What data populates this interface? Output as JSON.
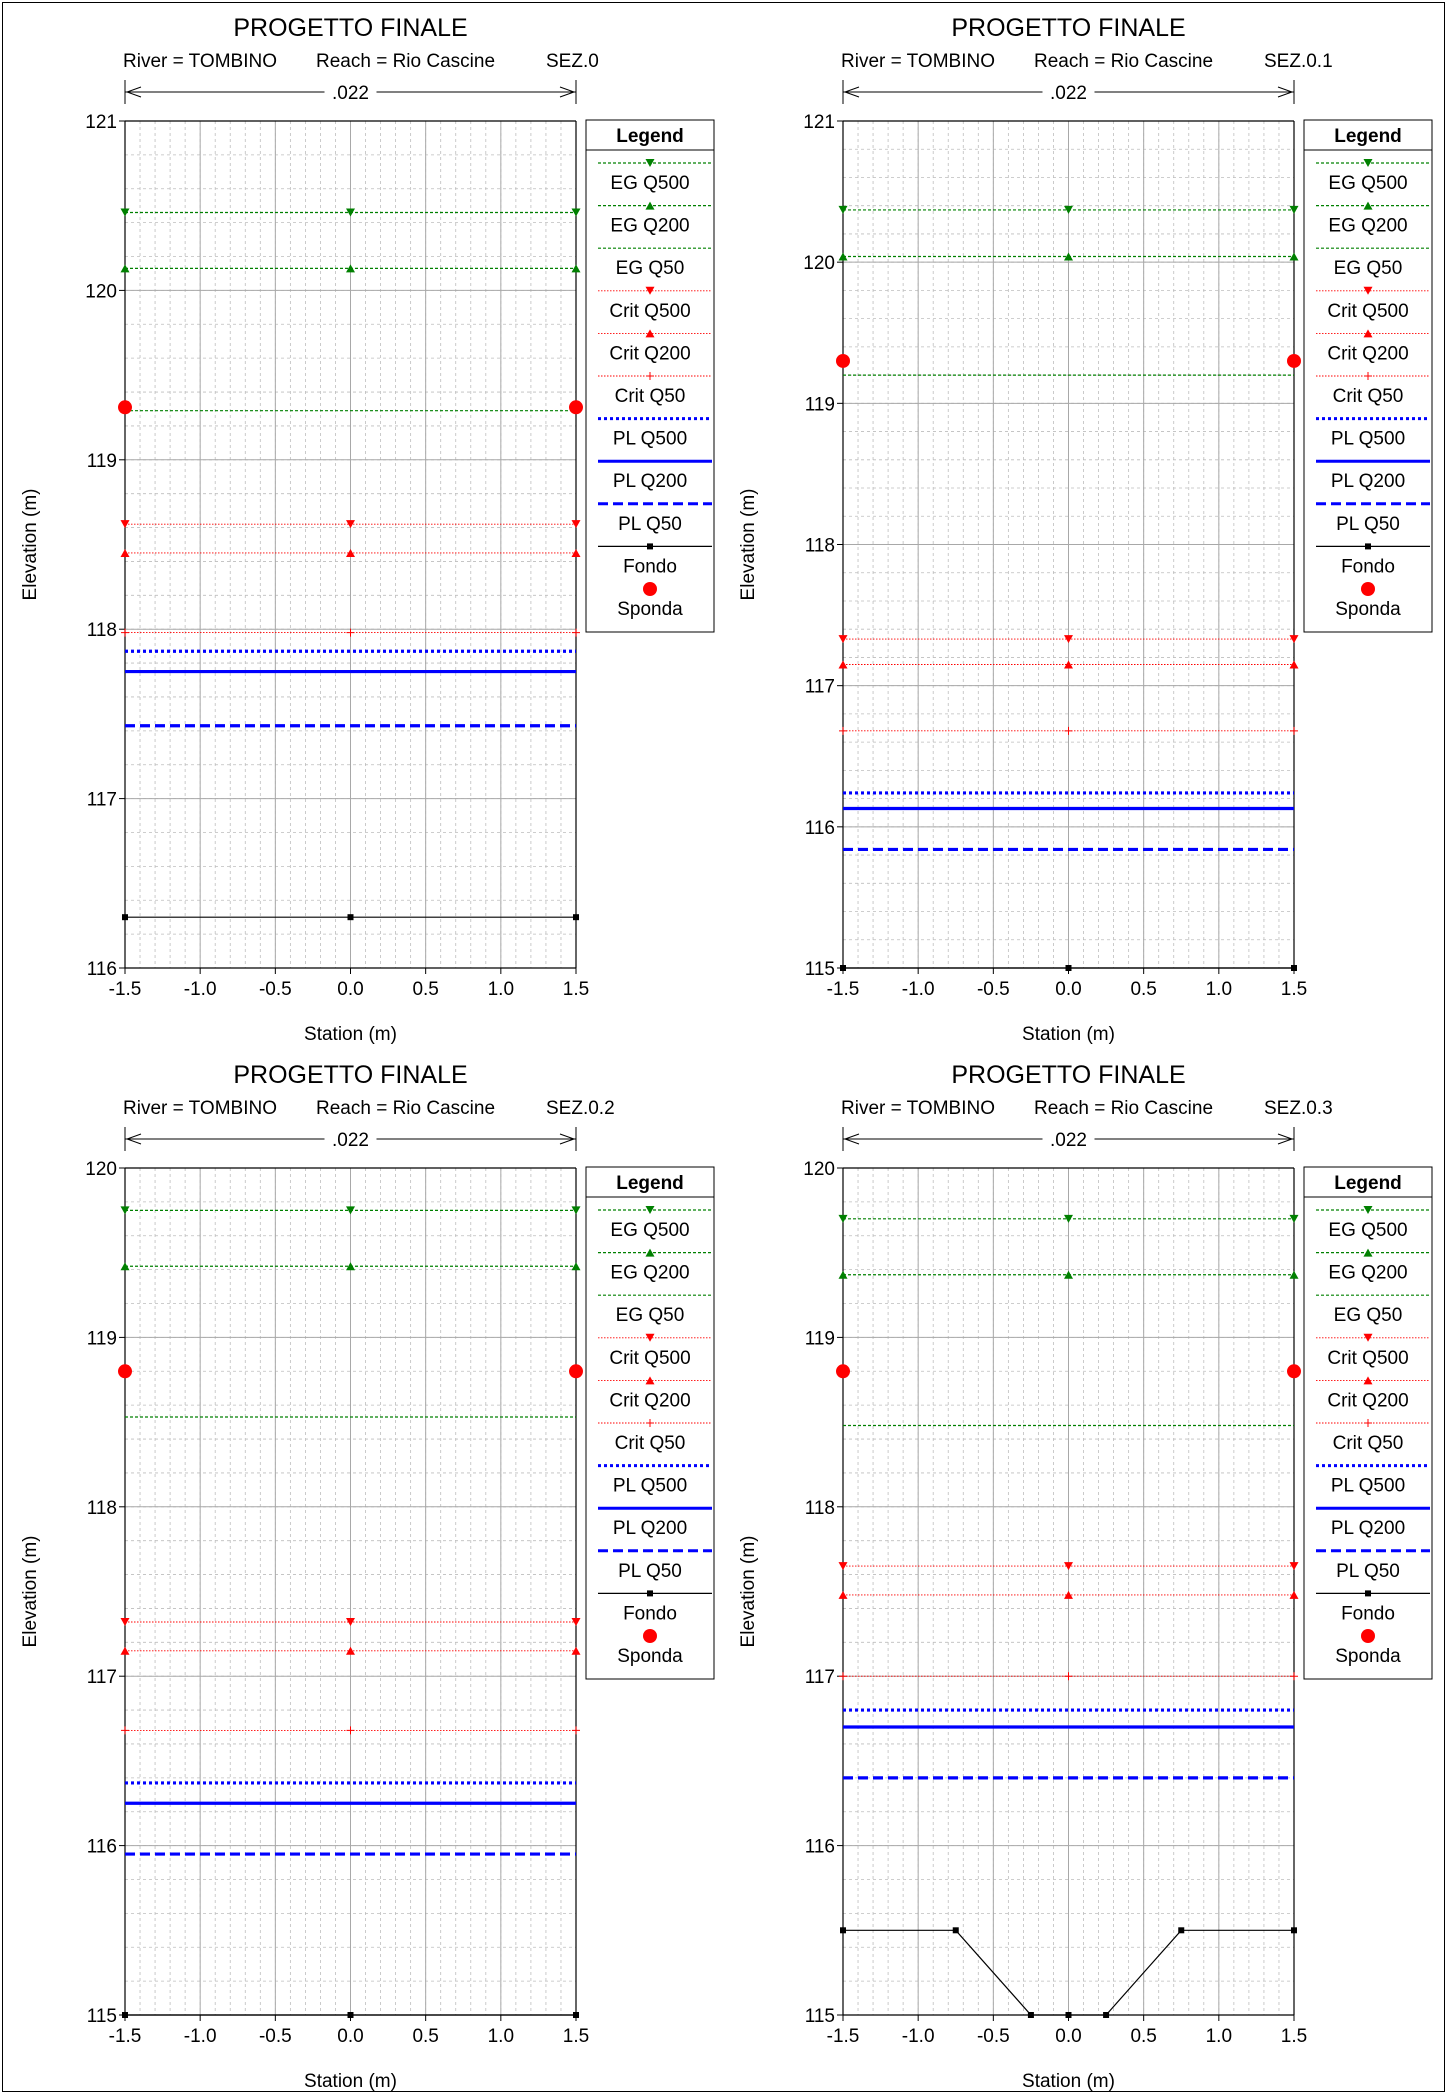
{
  "chart_data": [
    {
      "type": "line",
      "title": "PROGETTO FINALE",
      "subtitle": {
        "river": "River = TOMBINO",
        "reach": "Reach = Rio Cascine",
        "section": "SEZ.0"
      },
      "manning_n": ".022",
      "xlabel": "Station (m)",
      "ylabel": "Elevation (m)",
      "xlim": [
        -1.5,
        1.5
      ],
      "ylim": [
        116,
        121
      ],
      "xticks": [
        "-1.5",
        "-1.0",
        "-0.5",
        "0.0",
        "0.5",
        "1.0",
        "1.5"
      ],
      "yticks": [
        "116",
        "117",
        "118",
        "119",
        "120",
        "121"
      ],
      "grid": true,
      "legend_placement": "right",
      "series": [
        {
          "name": "EG Q500",
          "style": "eg500",
          "y": 120.46
        },
        {
          "name": "EG Q200",
          "style": "eg200",
          "y": 120.13
        },
        {
          "name": "EG Q50",
          "style": "eg50",
          "y": 119.29
        },
        {
          "name": "Crit Q500",
          "style": "crit500",
          "y": 118.62
        },
        {
          "name": "Crit Q200",
          "style": "crit200",
          "y": 118.45
        },
        {
          "name": "Crit Q50",
          "style": "crit50",
          "y": 117.98
        },
        {
          "name": "PL Q500",
          "style": "pl500",
          "y": 117.87
        },
        {
          "name": "PL Q200",
          "style": "pl200",
          "y": 117.75
        },
        {
          "name": "PL Q50",
          "style": "pl50",
          "y": 117.43
        },
        {
          "name": "Fondo",
          "style": "fondo",
          "x": [
            -1.5,
            0.0,
            1.5
          ],
          "y": [
            116.3,
            116.3,
            116.3
          ]
        },
        {
          "name": "Sponda",
          "style": "sponda",
          "x": [
            -1.5,
            1.5
          ],
          "y": [
            119.31,
            119.31
          ]
        }
      ]
    },
    {
      "type": "line",
      "title": "PROGETTO FINALE",
      "subtitle": {
        "river": "River = TOMBINO",
        "reach": "Reach = Rio Cascine",
        "section": "SEZ.0.1"
      },
      "manning_n": ".022",
      "xlabel": "Station (m)",
      "ylabel": "Elevation (m)",
      "xlim": [
        -1.5,
        1.5
      ],
      "ylim": [
        115,
        121
      ],
      "xticks": [
        "-1.5",
        "-1.0",
        "-0.5",
        "0.0",
        "0.5",
        "1.0",
        "1.5"
      ],
      "yticks": [
        "115",
        "116",
        "117",
        "118",
        "119",
        "120",
        "121"
      ],
      "grid": true,
      "legend_placement": "right",
      "series": [
        {
          "name": "EG Q500",
          "style": "eg500",
          "y": 120.37
        },
        {
          "name": "EG Q200",
          "style": "eg200",
          "y": 120.04
        },
        {
          "name": "EG Q50",
          "style": "eg50",
          "y": 119.2
        },
        {
          "name": "Crit Q500",
          "style": "crit500",
          "y": 117.33
        },
        {
          "name": "Crit Q200",
          "style": "crit200",
          "y": 117.15
        },
        {
          "name": "Crit Q50",
          "style": "crit50",
          "y": 116.68
        },
        {
          "name": "PL Q500",
          "style": "pl500",
          "y": 116.24
        },
        {
          "name": "PL Q200",
          "style": "pl200",
          "y": 116.13
        },
        {
          "name": "PL Q50",
          "style": "pl50",
          "y": 115.84
        },
        {
          "name": "Fondo",
          "style": "fondo",
          "x": [
            -1.5,
            0.0,
            1.5
          ],
          "y": [
            115.0,
            115.0,
            115.0
          ]
        },
        {
          "name": "Sponda",
          "style": "sponda",
          "x": [
            -1.5,
            1.5
          ],
          "y": [
            119.3,
            119.3
          ]
        }
      ]
    },
    {
      "type": "line",
      "title": "PROGETTO FINALE",
      "subtitle": {
        "river": "River = TOMBINO",
        "reach": "Reach = Rio Cascine",
        "section": "SEZ.0.2"
      },
      "manning_n": ".022",
      "xlabel": "Station (m)",
      "ylabel": "Elevation (m)",
      "xlim": [
        -1.5,
        1.5
      ],
      "ylim": [
        115,
        120
      ],
      "xticks": [
        "-1.5",
        "-1.0",
        "-0.5",
        "0.0",
        "0.5",
        "1.0",
        "1.5"
      ],
      "yticks": [
        "115",
        "116",
        "117",
        "118",
        "119",
        "120"
      ],
      "grid": true,
      "legend_placement": "right",
      "series": [
        {
          "name": "EG Q500",
          "style": "eg500",
          "y": 119.75
        },
        {
          "name": "EG Q200",
          "style": "eg200",
          "y": 119.42
        },
        {
          "name": "EG Q50",
          "style": "eg50",
          "y": 118.53
        },
        {
          "name": "Crit Q500",
          "style": "crit500",
          "y": 117.32
        },
        {
          "name": "Crit Q200",
          "style": "crit200",
          "y": 117.15
        },
        {
          "name": "Crit Q50",
          "style": "crit50",
          "y": 116.68
        },
        {
          "name": "PL Q500",
          "style": "pl500",
          "y": 116.37
        },
        {
          "name": "PL Q200",
          "style": "pl200",
          "y": 116.25
        },
        {
          "name": "PL Q50",
          "style": "pl50",
          "y": 115.95
        },
        {
          "name": "Fondo",
          "style": "fondo",
          "x": [
            -1.5,
            0.0,
            1.5
          ],
          "y": [
            115.0,
            115.0,
            115.0
          ]
        },
        {
          "name": "Sponda",
          "style": "sponda",
          "x": [
            -1.5,
            1.5
          ],
          "y": [
            118.8,
            118.8
          ]
        }
      ]
    },
    {
      "type": "line",
      "title": "PROGETTO FINALE",
      "subtitle": {
        "river": "River = TOMBINO",
        "reach": "Reach = Rio Cascine",
        "section": "SEZ.0.3"
      },
      "manning_n": ".022",
      "xlabel": "Station (m)",
      "ylabel": "Elevation (m)",
      "xlim": [
        -1.5,
        1.5
      ],
      "ylim": [
        115,
        120
      ],
      "xticks": [
        "-1.5",
        "-1.0",
        "-0.5",
        "0.0",
        "0.5",
        "1.0",
        "1.5"
      ],
      "yticks": [
        "115",
        "116",
        "117",
        "118",
        "119",
        "120"
      ],
      "grid": true,
      "legend_placement": "right",
      "series": [
        {
          "name": "EG Q500",
          "style": "eg500",
          "y": 119.7
        },
        {
          "name": "EG Q200",
          "style": "eg200",
          "y": 119.37
        },
        {
          "name": "EG Q50",
          "style": "eg50",
          "y": 118.48
        },
        {
          "name": "Crit Q500",
          "style": "crit500",
          "y": 117.65
        },
        {
          "name": "Crit Q200",
          "style": "crit200",
          "y": 117.48
        },
        {
          "name": "Crit Q50",
          "style": "crit50",
          "y": 117.0
        },
        {
          "name": "PL Q500",
          "style": "pl500",
          "y": 116.8
        },
        {
          "name": "PL Q200",
          "style": "pl200",
          "y": 116.7
        },
        {
          "name": "PL Q50",
          "style": "pl50",
          "y": 116.4
        },
        {
          "name": "Fondo",
          "style": "fondo",
          "x": [
            -1.5,
            -0.75,
            -0.25,
            0.0,
            0.25,
            0.75,
            1.5
          ],
          "y": [
            115.5,
            115.5,
            115.0,
            115.0,
            115.0,
            115.5,
            115.5
          ]
        },
        {
          "name": "Sponda",
          "style": "sponda",
          "x": [
            -1.5,
            1.5
          ],
          "y": [
            118.8,
            118.8
          ]
        }
      ]
    }
  ],
  "legend_title": "Legend",
  "colors": {
    "eg": "#008000",
    "crit": "#ff0000",
    "pl": "#0000ff",
    "fondo": "#000000",
    "sponda": "#ff0000"
  }
}
